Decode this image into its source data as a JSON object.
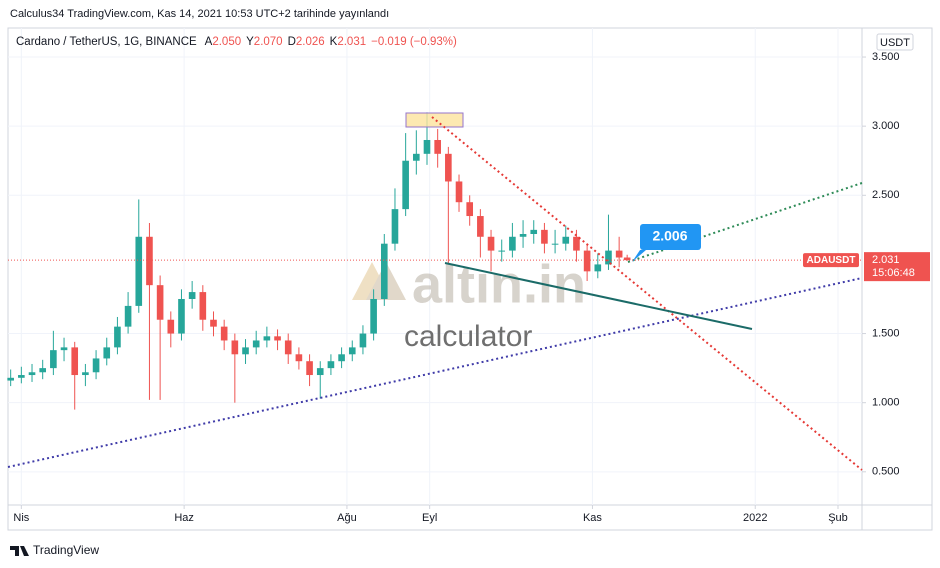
{
  "chart_data": {
    "type": "candlestick",
    "subtitle": "Calculus34 TradingView.com, Kas 14, 2021 10:53 UTC+2 tarihinde yayınlandı",
    "title": "Cardano / TetherUS, 1G, BINANCE",
    "ohlc_legend": [
      {
        "prefix": "A",
        "value": "2.050"
      },
      {
        "prefix": "Y",
        "value": "2.070"
      },
      {
        "prefix": "D",
        "value": "2.026"
      },
      {
        "prefix": "K",
        "value": "2.031"
      }
    ],
    "change": "−0.019 (−0.93%)",
    "currency": "USDT",
    "symbol": "ADAUSDT",
    "countdown": "15:06:48",
    "annotation": "2.006",
    "watermark": [
      "altın.in",
      "calculator"
    ],
    "footer": "TradingView",
    "up_color": "#26a69a",
    "down_color": "#ef5350",
    "grid": true,
    "last_price": {
      "value": 2.031,
      "label": "2.031"
    },
    "xlim": [
      -5,
      315
    ],
    "xticks": [
      {
        "value": 0,
        "label": "Nis"
      },
      {
        "value": 61,
        "label": "Haz"
      },
      {
        "value": 122,
        "label": "Ağu"
      },
      {
        "value": 153,
        "label": "Eyl"
      },
      {
        "value": 214,
        "label": "Kas"
      },
      {
        "value": 275,
        "label": "2022"
      },
      {
        "value": 306,
        "label": "Şub"
      }
    ],
    "ylim": [
      0.26,
      3.71
    ],
    "yticks": [
      {
        "value": 0.5,
        "label": "0.500"
      },
      {
        "value": 1,
        "label": "1.000"
      },
      {
        "value": 1.5,
        "label": "1.500"
      },
      {
        "value": 2.5,
        "label": "2.500"
      },
      {
        "value": 3,
        "label": "3.000"
      },
      {
        "value": 3.5,
        "label": "3.500"
      }
    ],
    "x": [
      -4,
      0,
      4,
      8,
      12,
      16,
      20,
      24,
      28,
      32,
      36,
      40,
      44,
      48,
      52,
      56,
      60,
      64,
      68,
      72,
      76,
      80,
      84,
      88,
      92,
      96,
      100,
      104,
      108,
      112,
      116,
      120,
      124,
      128,
      132,
      136,
      140,
      144,
      148,
      152,
      156,
      160,
      164,
      168,
      172,
      176,
      180,
      184,
      188,
      192,
      196,
      200,
      204,
      208,
      212,
      216,
      220,
      224,
      227
    ],
    "open": [
      1.16,
      1.18,
      1.2,
      1.22,
      1.25,
      1.38,
      1.4,
      1.2,
      1.22,
      1.32,
      1.4,
      1.55,
      1.7,
      2.2,
      1.85,
      1.6,
      1.5,
      1.75,
      1.8,
      1.6,
      1.55,
      1.45,
      1.35,
      1.4,
      1.45,
      1.48,
      1.45,
      1.35,
      1.3,
      1.2,
      1.25,
      1.3,
      1.35,
      1.4,
      1.5,
      1.75,
      2.15,
      2.4,
      2.75,
      2.8,
      2.9,
      2.8,
      2.6,
      2.45,
      2.35,
      2.2,
      2.1,
      2.1,
      2.2,
      2.22,
      2.25,
      2.15,
      2.15,
      2.2,
      2.1,
      1.95,
      2.0,
      2.1,
      2.05
    ],
    "high": [
      1.24,
      1.26,
      1.28,
      1.31,
      1.52,
      1.47,
      1.44,
      1.28,
      1.38,
      1.47,
      1.62,
      1.8,
      2.47,
      2.3,
      1.92,
      1.66,
      1.82,
      1.88,
      1.85,
      1.66,
      1.6,
      1.5,
      1.46,
      1.52,
      1.55,
      1.53,
      1.5,
      1.4,
      1.35,
      1.3,
      1.35,
      1.4,
      1.45,
      1.56,
      1.82,
      2.22,
      2.55,
      2.95,
      2.97,
      3.1,
      2.98,
      2.85,
      2.65,
      2.5,
      2.4,
      2.25,
      2.18,
      2.3,
      2.32,
      2.32,
      2.3,
      2.25,
      2.28,
      2.25,
      2.15,
      2.08,
      2.36,
      2.2,
      2.07
    ],
    "low": [
      1.12,
      1.14,
      1.15,
      1.17,
      1.2,
      1.3,
      0.95,
      1.12,
      1.17,
      1.27,
      1.35,
      1.5,
      1.65,
      1.02,
      1.02,
      1.4,
      1.45,
      1.68,
      1.52,
      1.48,
      1.38,
      1.0,
      1.28,
      1.35,
      1.4,
      1.38,
      1.28,
      1.24,
      1.12,
      1.03,
      1.2,
      1.25,
      1.3,
      1.35,
      1.45,
      1.7,
      2.1,
      2.35,
      2.65,
      2.72,
      2.7,
      2.0,
      2.38,
      2.28,
      2.05,
      1.95,
      2.02,
      2.05,
      2.12,
      2.15,
      2.08,
      2.08,
      2.1,
      2.02,
      1.88,
      1.9,
      1.96,
      1.98,
      2.026
    ],
    "close": [
      1.18,
      1.2,
      1.22,
      1.25,
      1.38,
      1.4,
      1.2,
      1.22,
      1.32,
      1.4,
      1.55,
      1.7,
      2.2,
      1.85,
      1.6,
      1.5,
      1.75,
      1.8,
      1.6,
      1.55,
      1.45,
      1.35,
      1.4,
      1.45,
      1.48,
      1.45,
      1.35,
      1.3,
      1.2,
      1.25,
      1.3,
      1.35,
      1.4,
      1.5,
      1.75,
      2.15,
      2.4,
      2.75,
      2.8,
      2.9,
      2.8,
      2.6,
      2.45,
      2.35,
      2.2,
      2.1,
      2.1,
      2.2,
      2.22,
      2.25,
      2.15,
      2.15,
      2.2,
      2.1,
      1.95,
      2.0,
      2.1,
      2.05,
      2.031
    ]
  }
}
